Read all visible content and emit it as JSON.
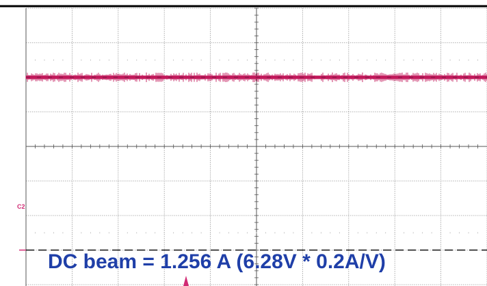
{
  "chart_data": {
    "type": "line",
    "title": "",
    "xlabel": "",
    "ylabel": "",
    "grid": true,
    "grid_divisions": {
      "x": 10,
      "y": 8
    },
    "ylim": [
      -4,
      4
    ],
    "xlim": [
      0,
      10
    ],
    "series": [
      {
        "values": [
          2.0,
          2.0,
          2.0,
          2.0,
          2.0,
          2.0,
          2.0,
          2.0,
          2.0,
          2.0,
          2.0
        ],
        "color": "#c2185b",
        "style": "noisy-band"
      },
      {
        "values": [
          -3.0,
          -3.0,
          -3.0,
          -3.0,
          -3.0,
          -3.0,
          -3.0,
          -3.0,
          -3.0,
          -3.0,
          -3.0
        ],
        "color": "#111111",
        "style": "dashed"
      }
    ],
    "markers": [
      {
        "label": "C2",
        "color": "#d12b74"
      }
    ],
    "annotation": "DC beam = 1.256 A (6.28V * 0.2A/V)"
  },
  "colors": {
    "frame": "#000000",
    "grid": "#9a9a9a",
    "trace_c1": "#c2185b",
    "trace_c2": "#111111",
    "caption": "#1f3fa8",
    "trigger": "#d12b74"
  }
}
